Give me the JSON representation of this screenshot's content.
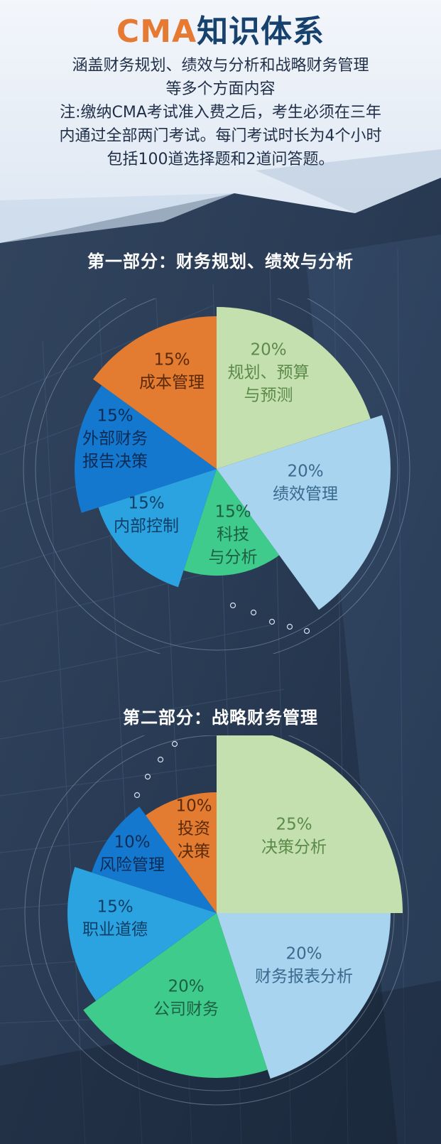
{
  "header": {
    "title_latin": "CMA",
    "title_cjk": "知识体系",
    "intro_lines": [
      "涵盖财务规划、绩效与分析和战略财务管理",
      "等多个方面内容",
      "注:缴纳CMA考试准入费之后，考生必须在三年",
      "内通过全部两门考试。每门考试时长为4个小时",
      "包括100道选择题和2道问答题。"
    ]
  },
  "colors": {
    "title_orange": "#e67a33",
    "title_navy": "#17426e",
    "light_green": "#c4e0af",
    "light_blue": "#a9d4f0",
    "teal_green": "#3fcb8c",
    "sky_blue": "#2ba3e0",
    "royal_blue": "#1478cf",
    "orange": "#e37c30"
  },
  "chart_data": [
    {
      "type": "pie",
      "title": "第一部分：财务规划、绩效与分析",
      "slices": [
        {
          "value": 20,
          "pct": "20%",
          "label_lines": [
            "规划、预算",
            "与预测"
          ],
          "color": "#c4e0af",
          "text_color": "#5c8a4a"
        },
        {
          "value": 20,
          "pct": "20%",
          "label_lines": [
            "绩效管理"
          ],
          "color": "#a9d4f0",
          "text_color": "#3a6a8c"
        },
        {
          "value": 15,
          "pct": "15%",
          "label_lines": [
            "科技",
            "与分析"
          ],
          "color": "#3fcb8c",
          "text_color": "#1d5f42"
        },
        {
          "value": 15,
          "pct": "15%",
          "label_lines": [
            "内部控制"
          ],
          "color": "#2ba3e0",
          "text_color": "#0f3f66"
        },
        {
          "value": 15,
          "pct": "15%",
          "label_lines": [
            "外部财务",
            "报告决策"
          ],
          "color": "#1478cf",
          "text_color": "#0c2c55"
        },
        {
          "value": 15,
          "pct": "15%",
          "label_lines": [
            "成本管理"
          ],
          "color": "#e37c30",
          "text_color": "#5a2a0a"
        }
      ]
    },
    {
      "type": "pie",
      "title": "第二部分：战略财务管理",
      "slices": [
        {
          "value": 25,
          "pct": "25%",
          "label_lines": [
            "决策分析"
          ],
          "color": "#c4e0af",
          "text_color": "#5c8a4a"
        },
        {
          "value": 20,
          "pct": "20%",
          "label_lines": [
            "财务报表分析"
          ],
          "color": "#a9d4f0",
          "text_color": "#3a6a8c"
        },
        {
          "value": 20,
          "pct": "20%",
          "label_lines": [
            "公司财务"
          ],
          "color": "#3fcb8c",
          "text_color": "#1d5f42"
        },
        {
          "value": 15,
          "pct": "15%",
          "label_lines": [
            "职业道德"
          ],
          "color": "#2ba3e0",
          "text_color": "#0f3f66"
        },
        {
          "value": 10,
          "pct": "10%",
          "label_lines": [
            "风险管理"
          ],
          "color": "#1478cf",
          "text_color": "#0c2c55"
        },
        {
          "value": 10,
          "pct": "10%",
          "label_lines": [
            "投资",
            "决策"
          ],
          "color": "#e37c30",
          "text_color": "#5a2a0a"
        }
      ]
    }
  ]
}
